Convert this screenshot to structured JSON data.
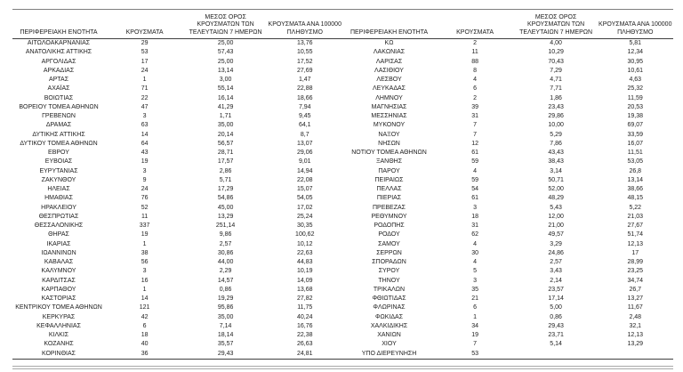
{
  "colors": {
    "background": "#ffffff",
    "text": "#212121",
    "heavy_rule": "#3f3f3f",
    "top_rule": "#7f7f7f",
    "light_double_rule": "#a8a8a8"
  },
  "header": {
    "region": "ΠΕΡΙΦΕΡΕΙΑΚΗ ΕΝΟΤΗΤΑ",
    "cases": "ΚΡΟΥΣΜΑΤΑ",
    "avg7_line1": "ΜΕΣΟΣ ΟΡΟΣ",
    "avg7_line2": "ΚΡΟΥΣΜΑΤΩΝ ΤΩΝ",
    "avg7_line3": "ΤΕΛΕΥΤΑΙΩΝ 7 ΗΜΕΡΩΝ",
    "per100k_line1": "ΚΡΟΥΣΜΑΤΑ ΑΝΑ 100000",
    "per100k_line2": "ΠΛΗΘΥΣΜΟ"
  },
  "tables": [
    {
      "name": "left",
      "rows": [
        [
          "ΑΙΤΩΛΟΑΚΑΡΝΑΝΙΑΣ",
          "29",
          "25,00",
          "13,76"
        ],
        [
          "ΑΝΑΤΟΛΙΚΗΣ ΑΤΤΙΚΗΣ",
          "53",
          "57,43",
          "10,55"
        ],
        [
          "ΑΡΓΟΛΙΔΑΣ",
          "17",
          "25,00",
          "17,52"
        ],
        [
          "ΑΡΚΑΔΙΑΣ",
          "24",
          "13,14",
          "27,69"
        ],
        [
          "ΑΡΤΑΣ",
          "1",
          "3,00",
          "1,47"
        ],
        [
          "ΑΧΑΪΑΣ",
          "71",
          "55,14",
          "22,88"
        ],
        [
          "ΒΟΙΩΤΙΑΣ",
          "22",
          "16,14",
          "18,66"
        ],
        [
          "ΒΟΡΕΙΟΥ ΤΟΜΕΑ ΑΘΗΝΩΝ",
          "47",
          "41,29",
          "7,94"
        ],
        [
          "ΓΡΕΒΕΝΩΝ",
          "3",
          "1,71",
          "9,45"
        ],
        [
          "ΔΡΑΜΑΣ",
          "63",
          "35,00",
          "64,1"
        ],
        [
          "ΔΥΤΙΚΗΣ ΑΤΤΙΚΗΣ",
          "14",
          "20,14",
          "8,7"
        ],
        [
          "ΔΥΤΙΚΟΥ ΤΟΜΕΑ ΑΘΗΝΩΝ",
          "64",
          "56,57",
          "13,07"
        ],
        [
          "ΕΒΡΟΥ",
          "43",
          "28,71",
          "29,06"
        ],
        [
          "ΕΥΒΟΙΑΣ",
          "19",
          "17,57",
          "9,01"
        ],
        [
          "ΕΥΡΥΤΑΝΙΑΣ",
          "3",
          "2,86",
          "14,94"
        ],
        [
          "ΖΑΚΥΝΘΟΥ",
          "9",
          "5,71",
          "22,08"
        ],
        [
          "ΗΛΕΙΑΣ",
          "24",
          "17,29",
          "15,07"
        ],
        [
          "ΗΜΑΘΙΑΣ",
          "76",
          "54,86",
          "54,05"
        ],
        [
          "ΗΡΑΚΛΕΙΟΥ",
          "52",
          "45,00",
          "17,02"
        ],
        [
          "ΘΕΣΠΡΩΤΙΑΣ",
          "11",
          "13,29",
          "25,24"
        ],
        [
          "ΘΕΣΣΑΛΟΝΙΚΗΣ",
          "337",
          "251,14",
          "30,35"
        ],
        [
          "ΘΗΡΑΣ",
          "19",
          "9,86",
          "100,62"
        ],
        [
          "ΙΚΑΡΙΑΣ",
          "1",
          "2,57",
          "10,12"
        ],
        [
          "ΙΩΑΝΝΙΝΩΝ",
          "38",
          "30,86",
          "22,63"
        ],
        [
          "ΚΑΒΑΛΑΣ",
          "56",
          "44,00",
          "44,83"
        ],
        [
          "ΚΑΛΥΜΝΟΥ",
          "3",
          "2,29",
          "10,19"
        ],
        [
          "ΚΑΡΔΙΤΣΑΣ",
          "16",
          "14,57",
          "14,09"
        ],
        [
          "ΚΑΡΠΑΘΟΥ",
          "1",
          "0,86",
          "13,68"
        ],
        [
          "ΚΑΣΤΟΡΙΑΣ",
          "14",
          "19,29",
          "27,82"
        ],
        [
          "ΚΕΝΤΡΙΚΟΥ ΤΟΜΕΑ ΑΘΗΝΩΝ",
          "121",
          "95,86",
          "11,75"
        ],
        [
          "ΚΕΡΚΥΡΑΣ",
          "42",
          "35,00",
          "40,24"
        ],
        [
          "ΚΕΦΑΛΛΗΝΙΑΣ",
          "6",
          "7,14",
          "16,76"
        ],
        [
          "ΚΙΛΚΙΣ",
          "18",
          "18,14",
          "22,38"
        ],
        [
          "ΚΟΖΑΝΗΣ",
          "40",
          "35,57",
          "26,63"
        ],
        [
          "ΚΟΡΙΝΘΙΑΣ",
          "36",
          "29,43",
          "24,81"
        ]
      ]
    },
    {
      "name": "right",
      "rows": [
        [
          "ΚΩ",
          "2",
          "4,00",
          "5,81"
        ],
        [
          "ΛΑΚΩΝΙΑΣ",
          "11",
          "10,29",
          "12,34"
        ],
        [
          "ΛΑΡΙΣΑΣ",
          "88",
          "70,43",
          "30,95"
        ],
        [
          "ΛΑΣΙΘΙΟΥ",
          "8",
          "7,29",
          "10,61"
        ],
        [
          "ΛΕΣΒΟΥ",
          "4",
          "4,71",
          "4,63"
        ],
        [
          "ΛΕΥΚΑΔΑΣ",
          "6",
          "7,71",
          "25,32"
        ],
        [
          "ΛΗΜΝΟΥ",
          "2",
          "1,86",
          "11,59"
        ],
        [
          "ΜΑΓΝΗΣΙΑΣ",
          "39",
          "23,43",
          "20,53"
        ],
        [
          "ΜΕΣΣΗΝΙΑΣ",
          "31",
          "29,86",
          "19,38"
        ],
        [
          "ΜΥΚΟΝΟΥ",
          "7",
          "10,00",
          "69,07"
        ],
        [
          "ΝΑΞΟΥ",
          "7",
          "5,29",
          "33,59"
        ],
        [
          "ΝΗΣΩΝ",
          "12",
          "7,86",
          "16,07"
        ],
        [
          "ΝΟΤΙΟΥ ΤΟΜΕΑ ΑΘΗΝΩΝ",
          "61",
          "43,43",
          "11,51"
        ],
        [
          "ΞΑΝΘΗΣ",
          "59",
          "38,43",
          "53,05"
        ],
        [
          "ΠΑΡΟΥ",
          "4",
          "3,14",
          "26,8"
        ],
        [
          "ΠΕΙΡΑΙΩΣ",
          "59",
          "50,71",
          "13,14"
        ],
        [
          "ΠΕΛΛΑΣ",
          "54",
          "52,00",
          "38,66"
        ],
        [
          "ΠΙΕΡΙΑΣ",
          "61",
          "48,29",
          "48,15"
        ],
        [
          "ΠΡΕΒΕΖΑΣ",
          "3",
          "5,43",
          "5,22"
        ],
        [
          "ΡΕΘΥΜΝΟΥ",
          "18",
          "12,00",
          "21,03"
        ],
        [
          "ΡΟΔΟΠΗΣ",
          "31",
          "21,00",
          "27,67"
        ],
        [
          "ΡΟΔΟΥ",
          "62",
          "49,57",
          "51,74"
        ],
        [
          "ΣΑΜΟΥ",
          "4",
          "3,29",
          "12,13"
        ],
        [
          "ΣΕΡΡΩΝ",
          "30",
          "24,86",
          "17"
        ],
        [
          "ΣΠΟΡΑΔΩΝ",
          "4",
          "2,57",
          "28,99"
        ],
        [
          "ΣΥΡΟΥ",
          "5",
          "3,43",
          "23,25"
        ],
        [
          "ΤΗΝΟΥ",
          "3",
          "2,14",
          "34,74"
        ],
        [
          "ΤΡΙΚΑΛΩΝ",
          "35",
          "23,57",
          "26,7"
        ],
        [
          "ΦΘΙΩΤΙΔΑΣ",
          "21",
          "17,14",
          "13,27"
        ],
        [
          "ΦΛΩΡΙΝΑΣ",
          "6",
          "5,00",
          "11,67"
        ],
        [
          "ΦΩΚΙΔΑΣ",
          "1",
          "0,86",
          "2,48"
        ],
        [
          "ΧΑΛΚΙΔΙΚΗΣ",
          "34",
          "29,43",
          "32,1"
        ],
        [
          "ΧΑΝΙΩΝ",
          "19",
          "23,71",
          "12,13"
        ],
        [
          "ΧΙΟΥ",
          "7",
          "5,14",
          "13,29"
        ],
        [
          "ΥΠΟ ΔΙΕΡΕΥΝΗΣΗ",
          "53",
          "",
          ""
        ]
      ]
    }
  ]
}
